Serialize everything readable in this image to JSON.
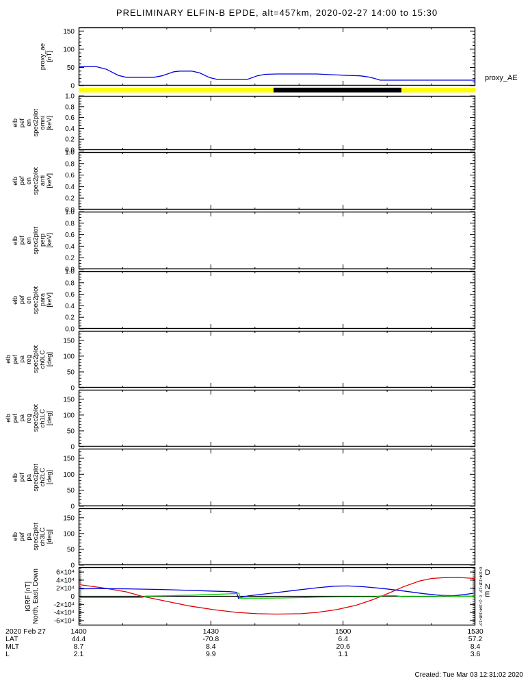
{
  "title": "PRELIMINARY ELFIN-B EPDE, alt=457km, 2020-02-27 14:00 to 15:30",
  "created": "Created: Tue Mar 03 12:31:02 2020",
  "chart_data": {
    "type": "line",
    "x_axis": {
      "range_minutes": [
        "14:00",
        "15:30"
      ],
      "major_frac": [
        0,
        0.3333,
        0.6667,
        1
      ],
      "minor_divisions": 9,
      "ticks": [
        {
          "time": "1400",
          "lat": "44.4",
          "mlt": "8.7",
          "l": "2.1",
          "frac": 0
        },
        {
          "time": "1430",
          "lat": "-70.8",
          "mlt": "8.4",
          "l": "9.9",
          "frac": 0.3333
        },
        {
          "time": "1500",
          "lat": "6.4",
          "mlt": "20.6",
          "l": "1.1",
          "frac": 0.6667
        },
        {
          "time": "1530",
          "lat": "57.2",
          "mlt": "8.4",
          "l": "3.6",
          "frac": 1
        }
      ],
      "row_labels": {
        "date": "2020 Feb 27",
        "lat": "LAT",
        "mlt": "MLT",
        "l": "L"
      }
    },
    "panels": [
      {
        "id": "proxy-ae",
        "type": "line",
        "layout": {
          "top": 40,
          "height": 85,
          "stack_width": 78
        },
        "label_lines": [
          "proxy_ae",
          "[nT]"
        ],
        "ylim": [
          0,
          160
        ],
        "yminor": 10,
        "yticks": [
          {
            "v": 0,
            "label": "0"
          },
          {
            "v": 50,
            "label": "50"
          },
          {
            "v": 100,
            "label": "100"
          },
          {
            "v": 150,
            "label": "150"
          }
        ],
        "right_labels": [
          {
            "text": "proxy_AE",
            "color": "#0000dd",
            "yfrac": 0.86
          }
        ],
        "series": [
          {
            "name": "proxy_AE",
            "color": "#0000dd",
            "points": [
              [
                0,
                52
              ],
              [
                0.045,
                52
              ],
              [
                0.07,
                45
              ],
              [
                0.1,
                28
              ],
              [
                0.12,
                23
              ],
              [
                0.19,
                23
              ],
              [
                0.21,
                27
              ],
              [
                0.24,
                38
              ],
              [
                0.255,
                40
              ],
              [
                0.285,
                40
              ],
              [
                0.305,
                35
              ],
              [
                0.33,
                22
              ],
              [
                0.35,
                17
              ],
              [
                0.425,
                17
              ],
              [
                0.45,
                27
              ],
              [
                0.47,
                31
              ],
              [
                0.5,
                32
              ],
              [
                0.6,
                32
              ],
              [
                0.64,
                30
              ],
              [
                0.68,
                28
              ],
              [
                0.71,
                27
              ],
              [
                0.73,
                24
              ],
              [
                0.745,
                20
              ],
              [
                0.76,
                15
              ],
              [
                1.0,
                15
              ]
            ]
          }
        ]
      },
      {
        "id": "availability-strip",
        "type": "strip",
        "layout": {
          "top": 128,
          "height": 7
        },
        "segments": [
          {
            "from": 0,
            "to": 1,
            "color": "#ffff00"
          },
          {
            "from": 0.491,
            "to": 0.814,
            "color": "#000000"
          }
        ]
      },
      {
        "id": "en-omni",
        "type": "empty",
        "layout": {
          "top": 140,
          "height": 79,
          "stack_width": 78
        },
        "label_lines": [
          "elb",
          "pef",
          "en",
          "spec2plot",
          "omni",
          "[keV]"
        ],
        "ylim": [
          0,
          1
        ],
        "yminor": 0.05,
        "yticks": [
          {
            "v": 0,
            "label": "0.0"
          },
          {
            "v": 0.2,
            "label": "0.2"
          },
          {
            "v": 0.4,
            "label": "0.4"
          },
          {
            "v": 0.6,
            "label": "0.6"
          },
          {
            "v": 0.8,
            "label": "0.8"
          },
          {
            "v": 1,
            "label": "1.0"
          }
        ]
      },
      {
        "id": "en-anti",
        "type": "empty",
        "layout": {
          "top": 222,
          "height": 84,
          "stack_width": 78
        },
        "label_lines": [
          "elb",
          "pef",
          "en",
          "spec2plot",
          "anti",
          "[keV]"
        ],
        "ylim": [
          0,
          1
        ],
        "yminor": 0.05,
        "yticks": [
          {
            "v": 0,
            "label": "0.0"
          },
          {
            "v": 0.2,
            "label": "0.2"
          },
          {
            "v": 0.4,
            "label": "0.4"
          },
          {
            "v": 0.6,
            "label": "0.6"
          },
          {
            "v": 0.8,
            "label": "0.8"
          },
          {
            "v": 1,
            "label": "1.0"
          }
        ]
      },
      {
        "id": "en-perp",
        "type": "empty",
        "layout": {
          "top": 309,
          "height": 84,
          "stack_width": 78
        },
        "label_lines": [
          "elb",
          "pef",
          "en",
          "spec2plot",
          "perp",
          "[keV]"
        ],
        "ylim": [
          0,
          1
        ],
        "yminor": 0.05,
        "yticks": [
          {
            "v": 0,
            "label": "0.0"
          },
          {
            "v": 0.2,
            "label": "0.2"
          },
          {
            "v": 0.4,
            "label": "0.4"
          },
          {
            "v": 0.6,
            "label": "0.6"
          },
          {
            "v": 0.8,
            "label": "0.8"
          },
          {
            "v": 1,
            "label": "1.0"
          }
        ]
      },
      {
        "id": "en-para",
        "type": "empty",
        "layout": {
          "top": 396,
          "height": 84,
          "stack_width": 78
        },
        "label_lines": [
          "elb",
          "pef",
          "en",
          "spec2plot",
          "para",
          "[keV]"
        ],
        "ylim": [
          0,
          1
        ],
        "yminor": 0.05,
        "yticks": [
          {
            "v": 0,
            "label": "0.0"
          },
          {
            "v": 0.2,
            "label": "0.2"
          },
          {
            "v": 0.4,
            "label": "0.4"
          },
          {
            "v": 0.6,
            "label": "0.6"
          },
          {
            "v": 0.8,
            "label": "0.8"
          },
          {
            "v": 1,
            "label": "1.0"
          }
        ]
      },
      {
        "id": "pa-ch0lc",
        "type": "empty",
        "layout": {
          "top": 483,
          "height": 83,
          "stack_width": 78
        },
        "label_lines": [
          "elb",
          "pef",
          "pa",
          "reg",
          "spec2plot",
          "ch0LC",
          "[deg]"
        ],
        "ylim": [
          0,
          180
        ],
        "yminor": 10,
        "yticks": [
          {
            "v": 0,
            "label": "0"
          },
          {
            "v": 50,
            "label": "50"
          },
          {
            "v": 100,
            "label": "100"
          },
          {
            "v": 150,
            "label": "150"
          }
        ]
      },
      {
        "id": "pa-ch1lc",
        "type": "empty",
        "layout": {
          "top": 569,
          "height": 83,
          "stack_width": 78
        },
        "label_lines": [
          "elb",
          "pef",
          "pa",
          "reg",
          "spec2plot",
          "ch1LC",
          "[deg]"
        ],
        "ylim": [
          0,
          180
        ],
        "yminor": 10,
        "yticks": [
          {
            "v": 0,
            "label": "0"
          },
          {
            "v": 50,
            "label": "50"
          },
          {
            "v": 100,
            "label": "100"
          },
          {
            "v": 150,
            "label": "150"
          }
        ]
      },
      {
        "id": "pa-ch2lc",
        "type": "empty",
        "layout": {
          "top": 655,
          "height": 84,
          "stack_width": 78
        },
        "label_lines": [
          "elb",
          "pef",
          "pa",
          "spec2plot",
          "ch2LC",
          "[deg]"
        ],
        "ylim": [
          0,
          180
        ],
        "yminor": 10,
        "yticks": [
          {
            "v": 0,
            "label": "0"
          },
          {
            "v": 50,
            "label": "50"
          },
          {
            "v": 100,
            "label": "100"
          },
          {
            "v": 150,
            "label": "150"
          }
        ]
      },
      {
        "id": "pa-ch3lc",
        "type": "empty",
        "layout": {
          "top": 742,
          "height": 83,
          "stack_width": 78
        },
        "label_lines": [
          "elb",
          "pef",
          "pa",
          "spec2plot",
          "ch3LC",
          "[deg]"
        ],
        "ylim": [
          0,
          180
        ],
        "yminor": 10,
        "yticks": [
          {
            "v": 0,
            "label": "0"
          },
          {
            "v": 50,
            "label": "50"
          },
          {
            "v": 100,
            "label": "100"
          },
          {
            "v": 150,
            "label": "150"
          }
        ]
      },
      {
        "id": "igrf",
        "type": "line",
        "layout": {
          "top": 828,
          "height": 85,
          "stack_width": 58,
          "big_labels": true
        },
        "label_lines": [
          "IGRF [nT]",
          "North, East, Down"
        ],
        "ylim": [
          -72000,
          72000
        ],
        "yminor": 5000,
        "yticks": [
          {
            "v": -60000,
            "label": "-6×10⁴"
          },
          {
            "v": -40000,
            "label": "-4×10⁴"
          },
          {
            "v": -20000,
            "label": "-2×10⁴"
          },
          {
            "v": 0,
            "label": "0"
          },
          {
            "v": 20000,
            "label": "2×10⁴"
          },
          {
            "v": 40000,
            "label": "4×10⁴"
          },
          {
            "v": 60000,
            "label": "6×10⁴"
          }
        ],
        "right_tick_labels_rotated": true,
        "zero_line": true,
        "right_labels": [
          {
            "text": "D",
            "color": "#dd0000",
            "yfrac": 0.08
          },
          {
            "text": "N",
            "color": "#0000dd",
            "yfrac": 0.33
          },
          {
            "text": "E",
            "color": "#00cc00",
            "yfrac": 0.46
          }
        ],
        "series": [
          {
            "name": "D",
            "color": "#dd0000",
            "points": [
              [
                0,
                29000
              ],
              [
                0.06,
                21000
              ],
              [
                0.12,
                11000
              ],
              [
                0.16,
                0
              ],
              [
                0.22,
                -12000
              ],
              [
                0.28,
                -24000
              ],
              [
                0.34,
                -33000
              ],
              [
                0.4,
                -40000
              ],
              [
                0.45,
                -43000
              ],
              [
                0.5,
                -44000
              ],
              [
                0.56,
                -43000
              ],
              [
                0.6,
                -40000
              ],
              [
                0.65,
                -33000
              ],
              [
                0.7,
                -22000
              ],
              [
                0.74,
                -9000
              ],
              [
                0.78,
                7000
              ],
              [
                0.82,
                24000
              ],
              [
                0.86,
                38000
              ],
              [
                0.89,
                44000
              ],
              [
                0.92,
                46000
              ],
              [
                0.96,
                46500
              ],
              [
                1.0,
                44000
              ]
            ]
          },
          {
            "name": "N",
            "color": "#0000dd",
            "points": [
              [
                0,
                18500
              ],
              [
                0.06,
                19000
              ],
              [
                0.12,
                18500
              ],
              [
                0.2,
                17000
              ],
              [
                0.27,
                15000
              ],
              [
                0.33,
                13000
              ],
              [
                0.38,
                11500
              ],
              [
                0.398,
                10000
              ],
              [
                0.403,
                -5000
              ],
              [
                0.412,
                -1500
              ],
              [
                0.43,
                1500
              ],
              [
                0.48,
                7000
              ],
              [
                0.54,
                14000
              ],
              [
                0.6,
                21000
              ],
              [
                0.645,
                25000
              ],
              [
                0.68,
                25500
              ],
              [
                0.72,
                23500
              ],
              [
                0.77,
                19000
              ],
              [
                0.82,
                13000
              ],
              [
                0.87,
                6500
              ],
              [
                0.91,
                2500
              ],
              [
                0.945,
                1500
              ],
              [
                0.975,
                4500
              ],
              [
                1.0,
                8500
              ]
            ]
          },
          {
            "name": "E",
            "color": "#00cc00",
            "points": [
              [
                0,
                -3000
              ],
              [
                0.16,
                -3000
              ],
              [
                0.17,
                500
              ],
              [
                0.23,
                1500
              ],
              [
                0.29,
                3000
              ],
              [
                0.34,
                4500
              ],
              [
                0.375,
                6000
              ],
              [
                0.392,
                6500
              ],
              [
                0.398,
                7800
              ],
              [
                0.404,
                7800
              ],
              [
                0.408,
                -4500
              ],
              [
                0.47,
                -4500
              ],
              [
                0.52,
                -4000
              ],
              [
                0.57,
                -3000
              ],
              [
                0.61,
                -1800
              ],
              [
                0.66,
                -1500
              ],
              [
                0.72,
                -1300
              ],
              [
                0.75,
                -1200
              ],
              [
                0.765,
                1300
              ],
              [
                0.8,
                1300
              ],
              [
                0.815,
                -600
              ],
              [
                0.9,
                -600
              ],
              [
                0.92,
                1200
              ],
              [
                0.945,
                300
              ],
              [
                1.0,
                300
              ]
            ]
          }
        ]
      }
    ]
  }
}
